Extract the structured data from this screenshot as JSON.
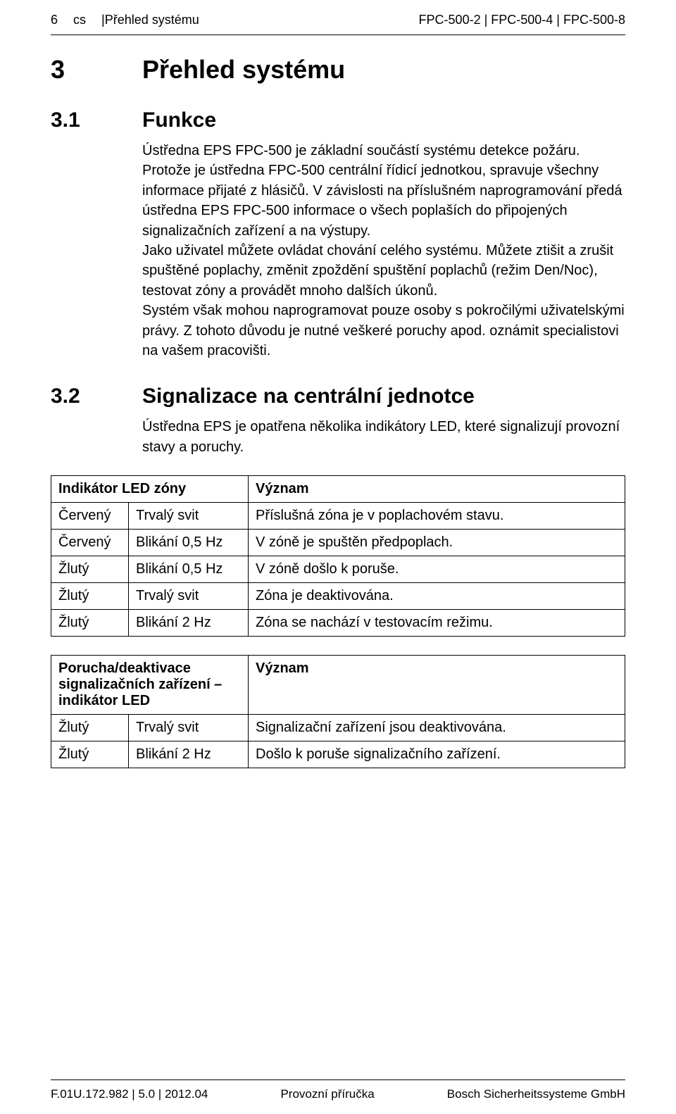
{
  "header": {
    "page_num": "6",
    "lang": "cs",
    "sep1": " | ",
    "breadcrumb": "Přehled systému",
    "models": "FPC-500-2 | FPC-500-4 | FPC-500-8"
  },
  "chapter": {
    "num": "3",
    "title": "Přehled systému"
  },
  "sec31": {
    "num": "3.1",
    "title": "Funkce",
    "body": "Ústředna EPS FPC-500 je základní součástí systému detekce požáru. Protože je ústředna FPC-500 centrální řídicí jednotkou, spravuje všechny informace přijaté z hlásičů. V závislosti na příslušném naprogramování předá ústředna EPS FPC-500 informace o všech poplaších do připojených signalizačních zařízení a na výstupy.\nJako uživatel můžete ovládat chování celého systému. Můžete ztišit a zrušit spuštěné poplachy, změnit zpoždění spuštění poplachů (režim Den/Noc), testovat zóny a provádět mnoho dalších úkonů.\nSystém však mohou naprogramovat pouze osoby s pokročilými uživatelskými právy. Z tohoto důvodu je nutné veškeré poruchy apod. oznámit specialistovi na vašem pracovišti."
  },
  "sec32": {
    "num": "3.2",
    "title": "Signalizace na centrální jednotce",
    "body": "Ústředna EPS je opatřena několika indikátory LED, které signalizují provozní stavy a poruchy."
  },
  "table1": {
    "h1": "Indikátor LED zóny",
    "h2": "Význam",
    "rows": [
      [
        "Červený",
        "Trvalý svit",
        "Příslušná zóna je v poplachovém stavu."
      ],
      [
        "Červený",
        "Blikání 0,5 Hz",
        "V zóně je spuštěn předpoplach."
      ],
      [
        "Žlutý",
        "Blikání 0,5 Hz",
        "V zóně došlo k poruše."
      ],
      [
        "Žlutý",
        "Trvalý svit",
        "Zóna je deaktivována."
      ],
      [
        "Žlutý",
        "Blikání 2 Hz",
        "Zóna se nachází v testovacím režimu."
      ]
    ]
  },
  "table2": {
    "h1": "Porucha/deaktivace signalizačních zařízení – indikátor LED",
    "h2": "Význam",
    "rows": [
      [
        "Žlutý",
        "Trvalý svit",
        "Signalizační zařízení jsou deaktivována."
      ],
      [
        "Žlutý",
        "Blikání 2 Hz",
        "Došlo k poruše signalizačního zařízení."
      ]
    ]
  },
  "footer": {
    "left": "F.01U.172.982 | 5.0 | 2012.04",
    "center": "Provozní příručka",
    "right": "Bosch Sicherheitssysteme GmbH"
  }
}
